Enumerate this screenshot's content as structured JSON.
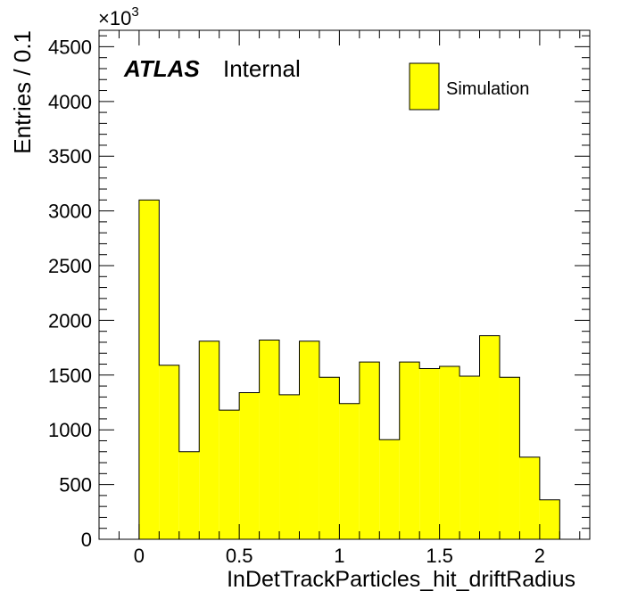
{
  "chart_data": {
    "type": "bar",
    "xlabel": "InDetTrackParticles_hit_driftRadius",
    "ylabel": "Entries / 0.1",
    "y_multiplier": "×10",
    "y_multiplier_exp": "3",
    "bin_edges": [
      0.0,
      0.1,
      0.2,
      0.3,
      0.4,
      0.5,
      0.6,
      0.7,
      0.8,
      0.9,
      1.0,
      1.1,
      1.2,
      1.3,
      1.4,
      1.5,
      1.6,
      1.7,
      1.8,
      1.9,
      2.0,
      2.1
    ],
    "values": [
      3100,
      1590,
      800,
      1810,
      1180,
      1340,
      1820,
      1320,
      1810,
      1480,
      1240,
      1620,
      910,
      1620,
      1560,
      1580,
      1490,
      1860,
      1480,
      750,
      360
    ],
    "xlim": [
      -0.2,
      2.25
    ],
    "ylim": [
      0,
      4650
    ],
    "xticks": [
      0,
      0.5,
      1,
      1.5,
      2
    ],
    "xtick_labels": [
      "0",
      "0.5",
      "1",
      "1.5",
      "2"
    ],
    "yticks": [
      0,
      500,
      1000,
      1500,
      2000,
      2500,
      3000,
      3500,
      4000,
      4500
    ],
    "ytick_labels": [
      "0",
      "500",
      "1000",
      "1500",
      "2000",
      "2500",
      "3000",
      "3500",
      "4000",
      "4500"
    ],
    "fill_color": "#ffff00",
    "edge_color": "#000000",
    "legend": {
      "position": "top-right",
      "entries": [
        {
          "label": "Simulation",
          "color": "#ffff00"
        }
      ]
    },
    "annotations": {
      "experiment": "ATLAS",
      "status": "Internal"
    }
  }
}
